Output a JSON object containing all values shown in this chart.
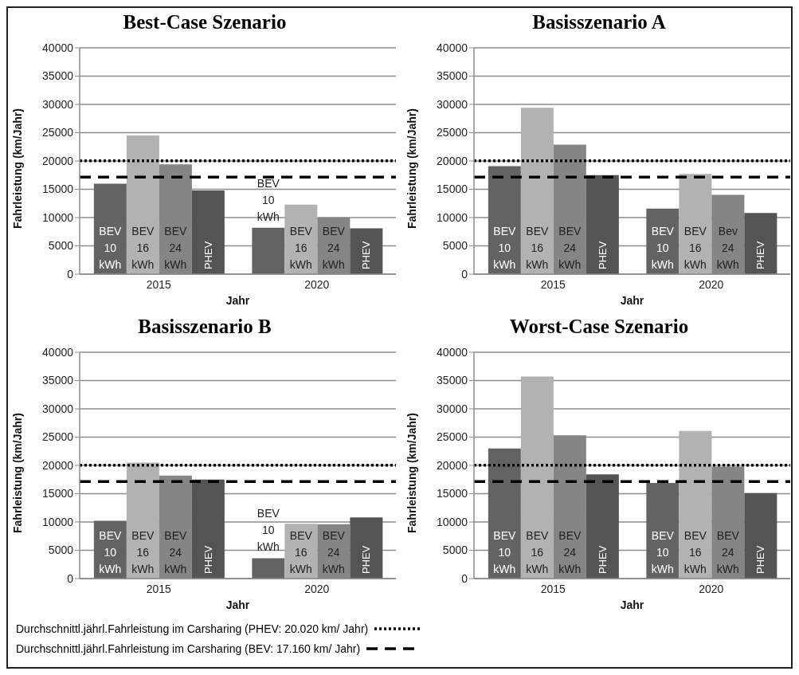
{
  "chart_data": [
    {
      "type": "bar",
      "title": "Best-Case Szenario",
      "xlabel": "Jahr",
      "ylabel": "Fahrleistung (km/Jahr)",
      "categories": [
        "2015",
        "2020"
      ],
      "ylim": [
        0,
        40000
      ],
      "yticks": [
        0,
        5000,
        10000,
        15000,
        20000,
        25000,
        30000,
        35000,
        40000
      ],
      "grid": "y",
      "legend": "bottom",
      "series": [
        {
          "name": "BEV 10 kWh",
          "color": "#636363",
          "values": [
            16000,
            8200
          ]
        },
        {
          "name": "BEV 16 kWh",
          "color": "#b2b2b2",
          "values": [
            24500,
            12300
          ]
        },
        {
          "name": "BEV 24 kWh",
          "color": "#858585",
          "values": [
            19400,
            10000
          ]
        },
        {
          "name": "PHEV",
          "color": "#545454",
          "values": [
            14800,
            8100
          ]
        }
      ],
      "ref_lines": [
        {
          "axis": "y",
          "value": 20020,
          "label": "Durchschnittl.jährl.Fahrleistung im Carsharing (PHEV: 20.020 km/ Jahr)",
          "line_style": "dotted",
          "color": "#000000"
        },
        {
          "axis": "y",
          "value": 17160,
          "label": "Durchschnittl.jährl.Fahrleistung im Carsharing (BEV: 17.160 km/ Jahr)",
          "line_style": "dashed",
          "color": "#000000"
        }
      ]
    },
    {
      "type": "bar",
      "title": "Basisszenario A",
      "xlabel": "Jahr",
      "ylabel": "Fahrleistung (km/Jahr)",
      "categories": [
        "2015",
        "2020"
      ],
      "ylim": [
        0,
        40000
      ],
      "yticks": [
        0,
        5000,
        10000,
        15000,
        20000,
        25000,
        30000,
        35000,
        40000
      ],
      "grid": "y",
      "legend": false,
      "series": [
        {
          "name": "BEV 10 kWh",
          "color": "#636363",
          "values": [
            19100,
            11600
          ]
        },
        {
          "name": "BEV 16 kWh",
          "color": "#b2b2b2",
          "values": [
            29400,
            17700
          ]
        },
        {
          "name": "BEV 24 kWh",
          "color": "#858585",
          "values": [
            22900,
            14000
          ]
        },
        {
          "name": "PHEV",
          "color": "#545454",
          "values": [
            17500,
            10800
          ]
        }
      ],
      "annotations": [
        {
          "text": "Bev 24 kWh",
          "x": "2020",
          "y": 14000
        }
      ],
      "ref_lines": [
        {
          "axis": "y",
          "value": 20020,
          "line_style": "dotted",
          "color": "#000000"
        },
        {
          "axis": "y",
          "value": 17160,
          "line_style": "dashed",
          "color": "#000000"
        }
      ]
    },
    {
      "type": "bar",
      "title": "Basisszenario B",
      "xlabel": "Jahr",
      "ylabel": "Fahrleistung (km/Jahr)",
      "categories": [
        "2015",
        "2020"
      ],
      "ylim": [
        0,
        40000
      ],
      "yticks": [
        0,
        5000,
        10000,
        15000,
        20000,
        25000,
        30000,
        35000,
        40000
      ],
      "grid": "y",
      "legend": false,
      "series": [
        {
          "name": "BEV 10 kWh",
          "color": "#636363",
          "values": [
            10200,
            3600
          ]
        },
        {
          "name": "BEV 16 kWh",
          "color": "#b2b2b2",
          "values": [
            20500,
            9700
          ]
        },
        {
          "name": "BEV 24 kWh",
          "color": "#858585",
          "values": [
            18200,
            9600
          ]
        },
        {
          "name": "PHEV",
          "color": "#545454",
          "values": [
            17500,
            10800
          ]
        }
      ],
      "ref_lines": [
        {
          "axis": "y",
          "value": 20020,
          "line_style": "dotted",
          "color": "#000000"
        },
        {
          "axis": "y",
          "value": 17160,
          "line_style": "dashed",
          "color": "#000000"
        }
      ]
    },
    {
      "type": "bar",
      "title": "Worst-Case Szenario",
      "xlabel": "Jahr",
      "ylabel": "Fahrleistung (km/Jahr)",
      "categories": [
        "2015",
        "2020"
      ],
      "ylim": [
        0,
        40000
      ],
      "yticks": [
        0,
        5000,
        10000,
        15000,
        20000,
        25000,
        30000,
        35000,
        40000
      ],
      "grid": "y",
      "legend": false,
      "series": [
        {
          "name": "BEV 10 kWh",
          "color": "#636363",
          "values": [
            23000,
            16900
          ]
        },
        {
          "name": "BEV 16 kWh",
          "color": "#b2b2b2",
          "values": [
            35700,
            26100
          ]
        },
        {
          "name": "BEV 24 kWh",
          "color": "#858585",
          "values": [
            25300,
            19800
          ]
        },
        {
          "name": "PHEV",
          "color": "#545454",
          "values": [
            18400,
            15100
          ]
        }
      ],
      "ref_lines": [
        {
          "axis": "y",
          "value": 20020,
          "line_style": "dotted",
          "color": "#000000"
        },
        {
          "axis": "y",
          "value": 17160,
          "line_style": "dashed",
          "color": "#000000"
        }
      ]
    }
  ]
}
